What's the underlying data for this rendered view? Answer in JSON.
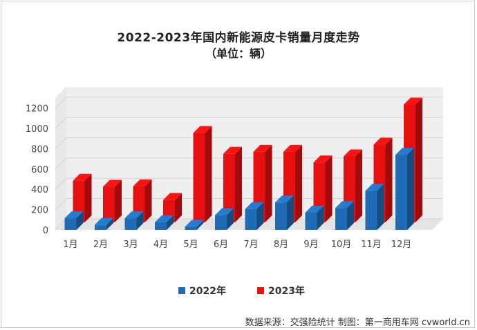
{
  "title": "2022-2023年国内新能源皮卡销量月度走势",
  "subtitle": "（单位：辆）",
  "source": "数据来源：交强险统计  制图：第一商用车网 cvworld.cn",
  "colors": {
    "series2022": "#1f6cb5",
    "series2023": "#e61010"
  },
  "chart_data": {
    "type": "bar",
    "title": "2022-2023年国内新能源皮卡销量月度走势",
    "ylabel": "辆",
    "categories": [
      "1月",
      "2月",
      "3月",
      "4月",
      "5月",
      "6月",
      "7月",
      "8月",
      "9月",
      "10月",
      "11月",
      "12月"
    ],
    "y_ticks": [
      "0",
      "200",
      "400",
      "600",
      "800",
      "1000",
      "1200"
    ],
    "ylim": [
      0,
      1200
    ],
    "series": [
      {
        "name": "2022年",
        "values": [
          115,
          50,
          115,
          75,
          30,
          145,
          205,
          270,
          170,
          215,
          385,
          740
        ]
      },
      {
        "name": "2023年",
        "values": [
          410,
          350,
          355,
          220,
          880,
          675,
          695,
          695,
          590,
          650,
          765,
          1160
        ]
      }
    ],
    "legend": "bottom-center"
  }
}
